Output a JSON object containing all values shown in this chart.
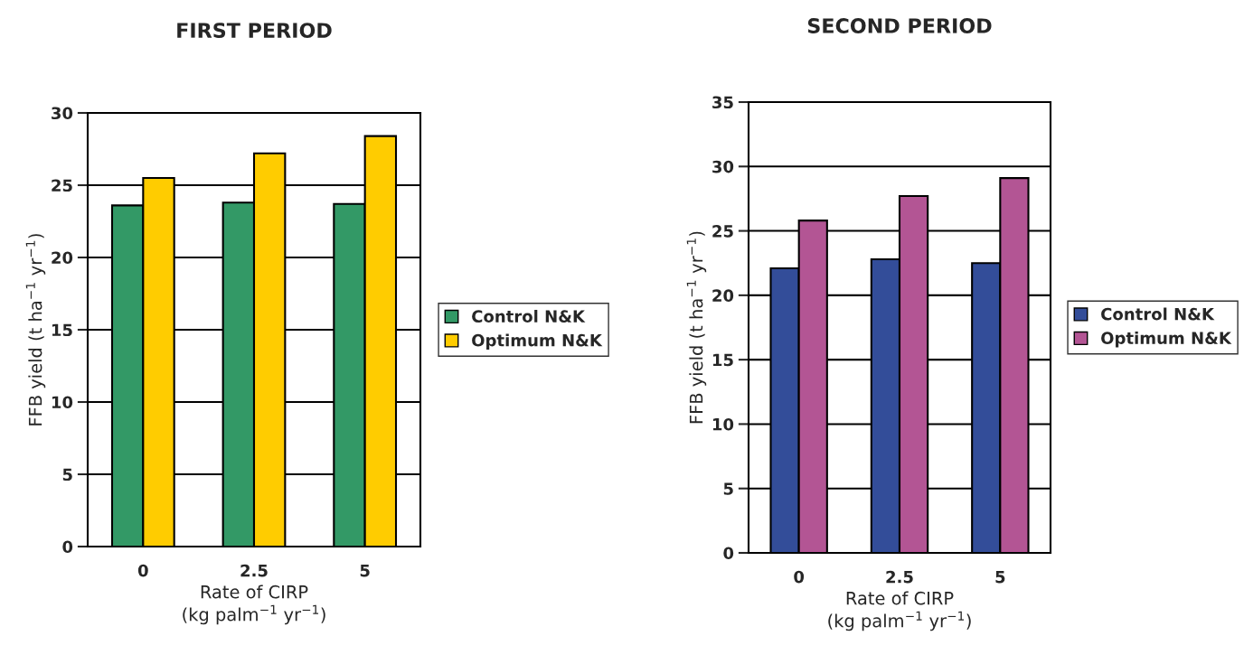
{
  "chart_data": [
    {
      "type": "bar",
      "title": "FIRST PERIOD",
      "xlabel": "Rate of CIRP\n(kg palm$^{−1}$ yr$^{−1}$)",
      "ylabel": "FFB yield (t ha$^{−1}$ yr$^{−1}$)",
      "categories": [
        "0",
        "2.5",
        "5"
      ],
      "series": [
        {
          "name": "Control N&K",
          "color": "#339966",
          "values": [
            23.6,
            23.8,
            23.7
          ]
        },
        {
          "name": "Optimum N&K",
          "color": "#ffcc00",
          "values": [
            25.5,
            27.2,
            28.4
          ]
        }
      ],
      "ylim": [
        0,
        30
      ],
      "yticks": [
        0,
        5,
        10,
        15,
        20,
        25,
        30
      ],
      "grid": "y",
      "legend": "right"
    },
    {
      "type": "bar",
      "title": "SECOND PERIOD",
      "xlabel": "Rate of CIRP\n(kg palm$^{−1}$ yr$^{−1}$)",
      "ylabel": "FFB yield (t ha$^{−1}$ yr$^{−1}$)",
      "categories": [
        "0",
        "2.5",
        "5"
      ],
      "series": [
        {
          "name": "Control N&K",
          "color": "#334d99",
          "values": [
            22.1,
            22.8,
            22.5
          ]
        },
        {
          "name": "Optimum N&K",
          "color": "#b35594",
          "values": [
            25.8,
            27.7,
            29.1
          ]
        }
      ],
      "ylim": [
        0,
        35
      ],
      "yticks": [
        0,
        5,
        10,
        15,
        20,
        25,
        30,
        35
      ],
      "grid": "y",
      "legend": "right"
    }
  ]
}
